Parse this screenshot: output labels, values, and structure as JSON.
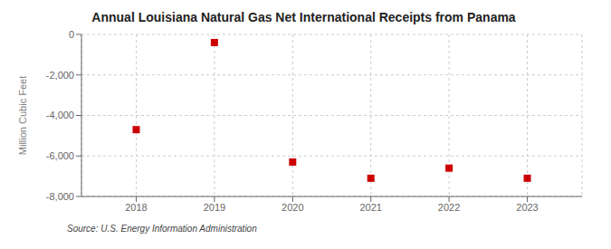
{
  "chart_data": {
    "type": "scatter",
    "title": "Annual Louisiana Natural Gas Net International Receipts from Panama",
    "ylabel": "Million Cubic Feet",
    "annotations": [
      "Source: U.S. Energy Information Administration"
    ],
    "x": [
      2018,
      2019,
      2020,
      2021,
      2022,
      2023
    ],
    "values": [
      -4700,
      -400,
      -6300,
      -7100,
      -6600,
      -7100
    ],
    "xlim": [
      2017.3,
      2023.7
    ],
    "xticks": [
      2018,
      2019,
      2020,
      2021,
      2022,
      2023
    ],
    "ylim": [
      -8000,
      0
    ],
    "yticks": [
      0,
      {
        "value": -2000,
        "label": "-2,000"
      },
      {
        "value": -4000,
        "label": "-4,000"
      },
      {
        "value": -6000,
        "label": "-6,000"
      },
      {
        "value": -8000,
        "label": "-8,000"
      }
    ],
    "color": "#cc0000",
    "marker": "square",
    "grid": true
  }
}
